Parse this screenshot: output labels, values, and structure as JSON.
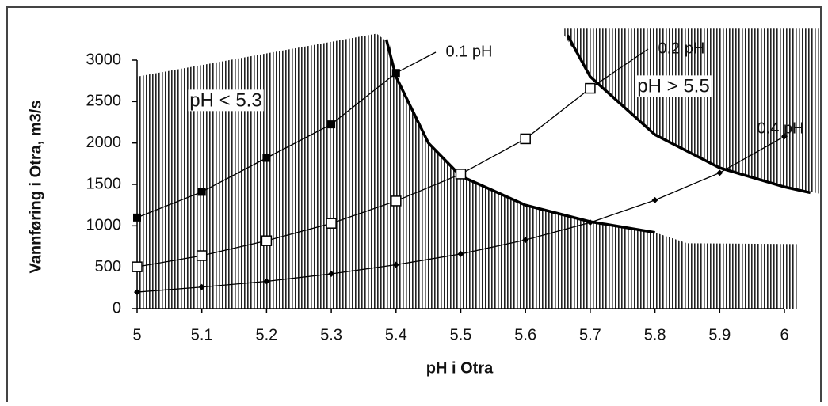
{
  "chart_data": {
    "type": "line",
    "x_label": "pH i Otra",
    "y_label": "Vannføring i Otra, m3/s",
    "xlim": [
      5,
      6
    ],
    "ylim": [
      0,
      3000
    ],
    "xticks": [
      5,
      5.1,
      5.2,
      5.3,
      5.4,
      5.5,
      5.6,
      5.7,
      5.8,
      5.9,
      6
    ],
    "yticks": [
      0,
      500,
      1000,
      1500,
      2000,
      2500,
      3000
    ],
    "color": "#000000",
    "series": [
      {
        "name": "0.1 pH",
        "marker": "filled-square",
        "x": [
          5,
          5.1,
          5.2,
          5.3,
          5.4
        ],
        "values": [
          1100,
          1410,
          1820,
          2225,
          2845
        ]
      },
      {
        "name": "0.2 pH",
        "marker": "open-square",
        "x": [
          5,
          5.1,
          5.2,
          5.3,
          5.4,
          5.5,
          5.6,
          5.7
        ],
        "values": [
          505,
          640,
          820,
          1030,
          1300,
          1625,
          2050,
          2660
        ]
      },
      {
        "name": "0.4 pH",
        "marker": "diamond",
        "x": [
          5,
          5.1,
          5.2,
          5.3,
          5.4,
          5.5,
          5.6,
          5.7,
          5.8,
          5.9,
          6
        ],
        "values": [
          200,
          260,
          330,
          420,
          530,
          660,
          830,
          1040,
          1310,
          1640,
          2080
        ]
      }
    ],
    "regions": [
      {
        "label": "pH < 5.3",
        "x": [
          5,
          5.37,
          5.39,
          5.4,
          5.45,
          5.5,
          5.6,
          5.7,
          5.8,
          5.85,
          6.02,
          6.02,
          5
        ],
        "y": [
          2800,
          3320,
          3200,
          2800,
          2000,
          1600,
          1250,
          1050,
          920,
          790,
          780,
          0,
          0
        ],
        "edge_x": [
          5.385,
          5.4,
          5.45,
          5.5,
          5.6,
          5.7,
          5.8
        ],
        "edge_y": [
          3250,
          2800,
          2000,
          1600,
          1250,
          1050,
          920
        ]
      },
      {
        "label": "pH > 5.5",
        "x": [
          5.66,
          6.06,
          6.06,
          6,
          5.9,
          5.8,
          5.7,
          5.66
        ],
        "y": [
          3380,
          3380,
          1380,
          1470,
          1700,
          2100,
          2800,
          3300
        ],
        "edge_x": [
          5.665,
          5.7,
          5.8,
          5.9,
          6,
          6.04
        ],
        "edge_y": [
          3300,
          2800,
          2100,
          1700,
          1470,
          1400
        ]
      }
    ]
  }
}
